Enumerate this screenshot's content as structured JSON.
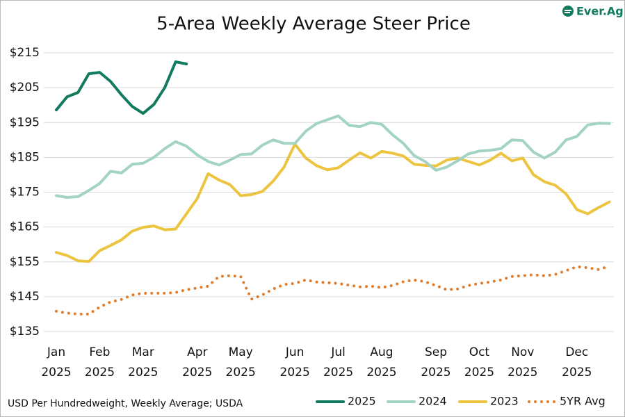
{
  "chart_data": {
    "type": "line",
    "title": "5-Area Weekly Average Steer Price",
    "logo": "Ever.Ag",
    "source": "USD Per Hundredweight, Weekly Average; USDA",
    "categories": [
      "Jan 2025",
      null,
      null,
      null,
      "Feb 2025",
      null,
      null,
      null,
      "Mar 2025",
      null,
      null,
      null,
      null,
      "Apr 2025",
      null,
      null,
      null,
      "May 2025",
      null,
      null,
      null,
      null,
      "Jun 2025",
      null,
      null,
      null,
      "Jul 2025",
      null,
      null,
      null,
      "Aug 2025",
      null,
      null,
      null,
      null,
      "Sep 2025",
      null,
      null,
      null,
      "Oct 2025",
      null,
      null,
      null,
      "Nov 2025",
      null,
      null,
      null,
      null,
      "Dec 2025",
      null,
      null,
      null
    ],
    "series": [
      {
        "name": "2025",
        "color": "#127a5e",
        "style": "solid",
        "values": [
          198.6,
          202.4,
          203.6,
          209,
          209.4,
          206.8,
          203,
          199.6,
          197.6,
          200.2,
          205,
          212.4,
          211.8,
          null,
          null,
          null,
          null,
          null,
          null,
          null,
          null,
          null,
          null,
          null,
          null,
          null,
          null,
          null,
          null,
          null,
          null,
          null,
          null,
          null,
          null,
          null,
          null,
          null,
          null,
          null,
          null,
          null,
          null,
          null,
          null,
          null,
          null,
          null,
          null,
          null,
          null,
          null
        ]
      },
      {
        "name": "2024",
        "color": "#a2d3c3",
        "style": "solid",
        "values": [
          174,
          173.5,
          173.7,
          175.5,
          177.5,
          181,
          180.5,
          183,
          183.3,
          185,
          187.5,
          189.5,
          188.2,
          185.7,
          183.8,
          182.8,
          184.2,
          185.8,
          186,
          188.5,
          190,
          189,
          189,
          192.5,
          194.7,
          195.8,
          196.9,
          194.2,
          193.8,
          195,
          194.5,
          191.5,
          189,
          185.5,
          183.8,
          181.3,
          182.2,
          184,
          186,
          186.8,
          187,
          187.5,
          190,
          189.8,
          186.5,
          184.8,
          186.5,
          190,
          191,
          194.3,
          194.8,
          194.7
        ]
      },
      {
        "name": "2023",
        "color": "#ecc440",
        "style": "solid",
        "values": [
          157.7,
          156.8,
          155.3,
          155.1,
          158.2,
          159.7,
          161.3,
          163.8,
          164.9,
          165.3,
          164.2,
          164.4,
          168.8,
          173.2,
          180.3,
          178.5,
          177.2,
          174,
          174.3,
          175.2,
          178.2,
          182.2,
          188.8,
          184.8,
          182.6,
          181.4,
          182,
          184.2,
          186.3,
          184.8,
          186.7,
          186.2,
          185.4,
          183,
          182.7,
          182.5,
          184.2,
          184.8,
          183.8,
          182.8,
          184.2,
          186.2,
          184,
          184.8,
          180,
          178,
          177,
          174.5,
          170,
          168.8,
          170.6,
          172.2
        ]
      },
      {
        "name": "5YR Avg",
        "color": "#e07b2a",
        "style": "dotted",
        "values": [
          140.8,
          140.3,
          140,
          140,
          142,
          143.5,
          144.2,
          145.5,
          146,
          146,
          146,
          146.2,
          147,
          147.5,
          148,
          150.8,
          151,
          150.8,
          144.3,
          145.5,
          147.2,
          148.5,
          148.8,
          149.8,
          149.2,
          149,
          148.8,
          148.3,
          147.8,
          148,
          147.6,
          148.2,
          149.3,
          149.8,
          149.3,
          148.2,
          147,
          147.2,
          148.2,
          148.8,
          149.2,
          149.8,
          150.8,
          151,
          151.3,
          151,
          151.4,
          152.5,
          153.6,
          153.3,
          152.8,
          153.8
        ]
      }
    ],
    "ylim": [
      135,
      215
    ],
    "yticks": [
      {
        "value": 135,
        "label": "$135"
      },
      {
        "value": 145,
        "label": "$145"
      },
      {
        "value": 155,
        "label": "$155"
      },
      {
        "value": 165,
        "label": "$165"
      },
      {
        "value": 175,
        "label": "$175"
      },
      {
        "value": 185,
        "label": "$185"
      },
      {
        "value": 195,
        "label": "$195"
      },
      {
        "value": 205,
        "label": "$205"
      },
      {
        "value": 215,
        "label": "$215"
      }
    ],
    "grid": true,
    "legend": "bottom-right"
  }
}
